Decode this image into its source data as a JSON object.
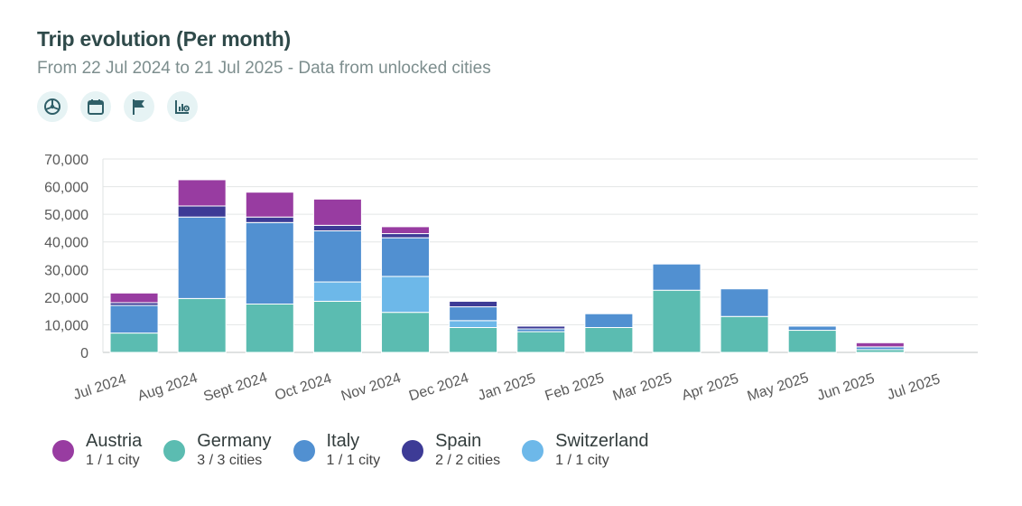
{
  "header": {
    "title": "Trip evolution (Per month)",
    "subtitle": "From 22 Jul 2024 to 21 Jul 2025 - Data from unlocked cities"
  },
  "toolbar": {
    "buttons": [
      {
        "icon": "steering-wheel-icon"
      },
      {
        "icon": "calendar-icon"
      },
      {
        "icon": "flag-icon"
      },
      {
        "icon": "chart-settings-icon"
      }
    ]
  },
  "legend": [
    {
      "name": "Austria",
      "sub": "1 / 1 city",
      "color": "#983ca1"
    },
    {
      "name": "Germany",
      "sub": "3 / 3 cities",
      "color": "#5bbcb1"
    },
    {
      "name": "Italy",
      "sub": "1 / 1 city",
      "color": "#5190d1"
    },
    {
      "name": "Spain",
      "sub": "2 / 2 cities",
      "color": "#3d3b96"
    },
    {
      "name": "Switzerland",
      "sub": "1 / 1 city",
      "color": "#6db8e9"
    }
  ],
  "chart_data": {
    "type": "bar",
    "stacked": true,
    "categories": [
      "Jul 2024",
      "Aug 2024",
      "Sept 2024",
      "Oct 2024",
      "Nov 2024",
      "Dec 2024",
      "Jan 2025",
      "Feb 2025",
      "Mar 2025",
      "Apr 2025",
      "May 2025",
      "Jun 2025",
      "Jul 2025"
    ],
    "series": [
      {
        "name": "Germany",
        "color": "#5bbcb1",
        "values": [
          7000,
          19500,
          17500,
          18500,
          14500,
          9000,
          7500,
          9000,
          22500,
          13000,
          8000,
          1000,
          0
        ]
      },
      {
        "name": "Switzerland",
        "color": "#6db8e9",
        "values": [
          0,
          0,
          0,
          7000,
          13000,
          2500,
          0,
          0,
          0,
          0,
          0,
          0,
          0
        ]
      },
      {
        "name": "Italy",
        "color": "#5190d1",
        "values": [
          10000,
          29500,
          29500,
          18500,
          14000,
          5000,
          1000,
          5000,
          9500,
          10000,
          1500,
          1000,
          0
        ]
      },
      {
        "name": "Spain",
        "color": "#3d3b96",
        "values": [
          1000,
          4000,
          2000,
          2000,
          1500,
          2000,
          1000,
          0,
          0,
          0,
          0,
          0,
          0
        ]
      },
      {
        "name": "Austria",
        "color": "#983ca1",
        "values": [
          3500,
          9500,
          9000,
          9500,
          2500,
          0,
          0,
          0,
          0,
          0,
          0,
          1500,
          0
        ]
      }
    ],
    "yticks": [
      "0",
      "10,000",
      "20,000",
      "30,000",
      "40,000",
      "50,000",
      "60,000",
      "70,000"
    ],
    "ylim": [
      0,
      70000
    ],
    "grid": true,
    "legend_position": "bottom"
  }
}
